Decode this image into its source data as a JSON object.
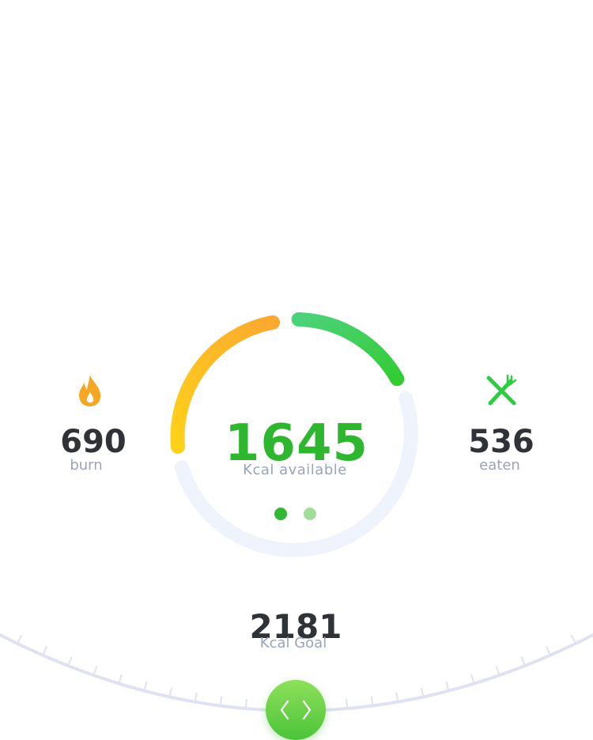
{
  "burn": {
    "value": "690",
    "label": "burn",
    "icon": "flame-icon",
    "color": "#f5a623"
  },
  "eaten": {
    "value": "536",
    "label": "eaten",
    "icon": "fork-knife-icon",
    "color": "#2ecc40"
  },
  "available": {
    "value": "1645",
    "label": "Kcal available",
    "color": "#2eb72e"
  },
  "goal": {
    "value": "2181",
    "label": "Kcal Goal"
  },
  "pager": {
    "count": 2,
    "active_index": 0,
    "active_color": "#33b833",
    "inactive_color": "#a3dd9a"
  },
  "dial_button": {
    "icon": "chevron-left-right-icon"
  },
  "colors": {
    "track": "#eff3fb",
    "burn_arc_start": "#ffd11a",
    "burn_arc_end": "#fba830",
    "eaten_arc_start": "#4cd27a",
    "eaten_arc_end": "#33cc33",
    "dial_line": "#dfe3f1"
  }
}
